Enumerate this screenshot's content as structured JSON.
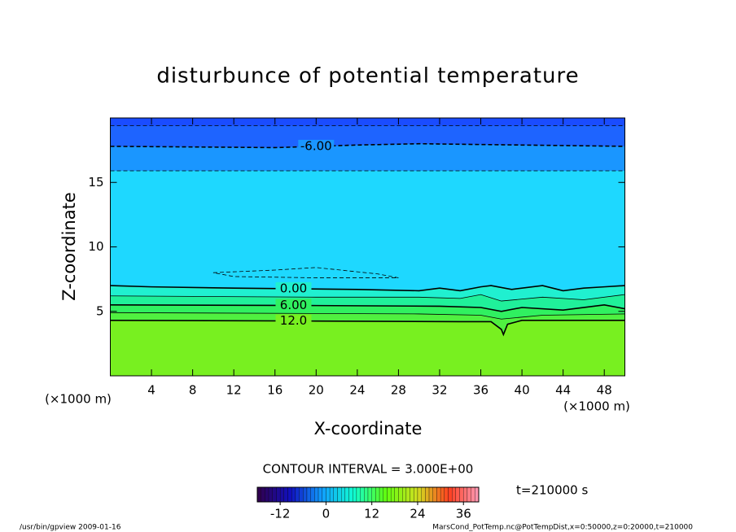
{
  "chart_data": {
    "type": "contour",
    "title": "disturbunce of potential temperature",
    "xlabel": "X-coordinate",
    "ylabel": "Z-coordinate",
    "x_unit": "(×1000 m)",
    "y_unit": "(×1000 m)",
    "xlim": [
      0,
      50
    ],
    "ylim": [
      0,
      20
    ],
    "xticks": [
      4,
      8,
      12,
      16,
      20,
      24,
      28,
      32,
      36,
      40,
      44,
      48
    ],
    "yticks": [
      5,
      10,
      15
    ],
    "background_color": "#1a4cff",
    "contours": [
      {
        "level": -9,
        "dashed": true,
        "fill_below": "#1e64ff",
        "x": [
          0,
          50
        ],
        "z": [
          19.4,
          19.4
        ]
      },
      {
        "level": -6,
        "label": "-6.00",
        "dashed": true,
        "fill_below": "#1a96ff",
        "x": [
          0,
          16,
          24,
          30,
          40,
          50
        ],
        "z": [
          17.8,
          17.7,
          17.9,
          18.0,
          17.9,
          17.8
        ]
      },
      {
        "level": -3,
        "dashed": true,
        "fill_below": "#1ed8ff",
        "x": [
          0,
          50
        ],
        "z": [
          15.9,
          15.9
        ]
      },
      {
        "level": -3,
        "dashed": true,
        "fill_below": null,
        "x": [
          10,
          16,
          20,
          26,
          28,
          20,
          12,
          10
        ],
        "z": [
          8.0,
          8.2,
          8.4,
          7.9,
          7.6,
          7.6,
          7.7,
          8.0
        ]
      },
      {
        "level": 0,
        "label": "0.00",
        "dashed": false,
        "fill_below": "#20f0d0",
        "x": [
          0,
          4,
          12,
          24,
          30,
          32,
          34,
          36,
          37,
          39,
          42,
          44,
          46,
          48,
          50
        ],
        "z": [
          7.0,
          6.9,
          6.8,
          6.7,
          6.6,
          6.8,
          6.6,
          6.9,
          7.0,
          6.7,
          7.0,
          6.6,
          6.8,
          6.9,
          7.0
        ]
      },
      {
        "level": 3,
        "dashed": false,
        "fill_below": "#20f09a",
        "x": [
          0,
          20,
          30,
          34,
          36,
          38,
          42,
          46,
          50
        ],
        "z": [
          6.2,
          6.1,
          6.1,
          6.0,
          6.3,
          5.8,
          6.1,
          5.9,
          6.3
        ]
      },
      {
        "level": 6,
        "label": "6.00",
        "dashed": false,
        "fill_below": "#30f060",
        "x": [
          0,
          20,
          32,
          36,
          38,
          40,
          44,
          48,
          50
        ],
        "z": [
          5.5,
          5.45,
          5.4,
          5.3,
          5.0,
          5.3,
          5.1,
          5.5,
          5.2
        ]
      },
      {
        "level": 9,
        "dashed": false,
        "fill_below": "#50f040",
        "x": [
          0,
          30,
          36,
          38,
          42,
          50
        ],
        "z": [
          4.9,
          4.8,
          4.7,
          4.4,
          4.7,
          4.8
        ]
      },
      {
        "level": 12,
        "label": "12.0",
        "dashed": false,
        "fill_below": "#78f020",
        "x": [
          0,
          20,
          34,
          37,
          38,
          38.2,
          38.6,
          40,
          50
        ],
        "z": [
          4.3,
          4.25,
          4.2,
          4.2,
          3.6,
          3.2,
          4.0,
          4.3,
          4.3
        ]
      }
    ],
    "contour_interval": "CONTOUR INTERVAL = 3.000E+00",
    "time_label": "t=210000 s",
    "colorbar": {
      "lim": [
        -18,
        40
      ],
      "ticks": [
        -12,
        0,
        12,
        24,
        36
      ],
      "colors": [
        "#300050",
        "#1010c0",
        "#10a0ff",
        "#10ffd0",
        "#60ff10",
        "#d0e020",
        "#ff4020",
        "#ffa0c0"
      ]
    },
    "footer_left": "/usr/bin/gpview   2009-01-16",
    "footer_right": "MarsCond_PotTemp.nc@PotTempDist,x=0:50000,z=0:20000,t=210000"
  }
}
